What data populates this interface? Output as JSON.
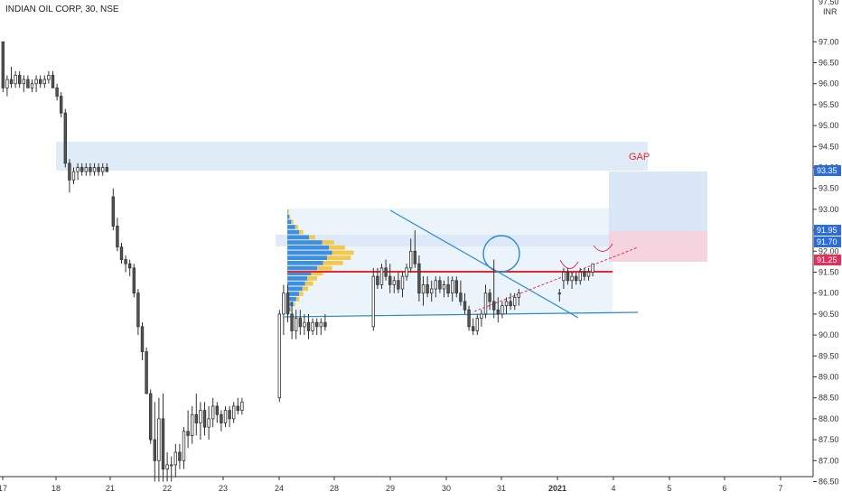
{
  "symbol_title": "INDIAN OIL CORP, 30, NSE",
  "currency": "INR",
  "gap_label": "GAP",
  "colors": {
    "up": "#ffffff",
    "down": "#555555",
    "wick": "#333333",
    "zone": "#dbe7f7",
    "zone_light": "#eaf3fb",
    "red_line": "#e8282b",
    "blue_line": "#2b8ccd",
    "vp_up": "#3f8fe0",
    "vp_down": "#f2c94c",
    "pink_zone": "#f4cfdc",
    "target_zone": "#d5e4f6",
    "gap_text": "#e8282b",
    "badge_blue": "#2b6cd9",
    "badge_red": "#e0305c"
  },
  "chart_data": {
    "type": "candlestick",
    "title": "INDIAN OIL CORP, 30, NSE",
    "ylabel": "INR",
    "ylim": [
      86.4,
      97.0
    ],
    "y_ticks": [
      "97.00",
      "96.50",
      "96.00",
      "95.50",
      "95.00",
      "94.50",
      "94.00",
      "93.50",
      "93.00",
      "92.50",
      "92.00",
      "91.50",
      "91.00",
      "90.50",
      "90.00",
      "89.50",
      "89.00",
      "88.50",
      "88.00",
      "87.50",
      "87.00",
      "86.50"
    ],
    "y_tick_values": [
      97.0,
      96.5,
      96.0,
      95.5,
      95.0,
      94.5,
      94.0,
      93.5,
      93.0,
      92.5,
      92.0,
      91.5,
      91.0,
      90.5,
      90.0,
      89.5,
      89.0,
      88.5,
      88.0,
      87.5,
      87.0,
      86.5
    ],
    "top_partial_tick": "97.50",
    "x_labels": [
      "17",
      "18",
      "21",
      "22",
      "23",
      "24",
      "28",
      "29",
      "30",
      "31",
      "2021",
      "4",
      "5",
      "6",
      "7"
    ],
    "price_badges": [
      {
        "value": "93.35",
        "color_key": "badge_blue"
      },
      {
        "value": "91.95",
        "color_key": "badge_blue"
      },
      {
        "value": "91.70",
        "color_key": "badge_blue"
      },
      {
        "value": "91.25",
        "color_key": "badge_red"
      }
    ],
    "candles": [
      [
        97.0,
        97.0,
        95.8,
        95.9
      ],
      [
        95.9,
        96.2,
        95.7,
        96.1
      ],
      [
        96.1,
        96.4,
        95.9,
        96.0
      ],
      [
        96.0,
        96.3,
        95.9,
        96.2
      ],
      [
        96.2,
        96.3,
        95.9,
        96.0
      ],
      [
        96.0,
        96.2,
        95.8,
        96.1
      ],
      [
        96.1,
        96.2,
        95.9,
        95.9
      ],
      [
        95.9,
        96.1,
        95.8,
        96.0
      ],
      [
        96.0,
        96.2,
        95.8,
        96.1
      ],
      [
        96.1,
        96.2,
        95.9,
        96.0
      ],
      [
        96.0,
        96.2,
        95.9,
        96.1
      ],
      [
        96.1,
        96.3,
        96.0,
        96.2
      ],
      [
        96.2,
        96.3,
        95.9,
        95.9
      ],
      [
        95.9,
        96.0,
        95.6,
        95.7
      ],
      [
        95.7,
        95.8,
        95.2,
        95.3
      ],
      [
        95.3,
        95.4,
        94.0,
        94.1
      ],
      [
        94.1,
        94.2,
        93.4,
        93.7
      ],
      [
        93.7,
        94.0,
        93.6,
        93.9
      ],
      [
        93.9,
        94.1,
        93.7,
        94.0
      ],
      [
        94.0,
        94.1,
        93.8,
        93.9
      ],
      [
        93.9,
        94.1,
        93.8,
        94.0
      ],
      [
        94.0,
        94.1,
        93.8,
        93.9
      ],
      [
        93.9,
        94.1,
        93.8,
        94.0
      ],
      [
        94.0,
        94.1,
        93.8,
        93.9
      ],
      [
        93.9,
        94.1,
        93.8,
        94.0
      ],
      [
        94.0,
        94.1,
        93.9,
        93.9
      ],
      [
        93.3,
        93.5,
        92.5,
        92.6
      ],
      [
        92.6,
        92.8,
        92.0,
        92.1
      ],
      [
        92.1,
        92.2,
        91.7,
        91.8
      ],
      [
        91.8,
        91.9,
        91.5,
        91.7
      ],
      [
        91.7,
        91.8,
        91.4,
        91.6
      ],
      [
        91.6,
        91.7,
        90.9,
        91.0
      ],
      [
        91.0,
        91.1,
        90.0,
        90.2
      ],
      [
        90.2,
        90.3,
        89.4,
        89.6
      ],
      [
        89.6,
        89.7,
        88.6,
        88.6
      ],
      [
        88.6,
        88.7,
        87.4,
        87.5
      ],
      [
        87.5,
        88.4,
        86.5,
        87.0
      ],
      [
        87.0,
        88.5,
        86.5,
        88.0
      ],
      [
        88.0,
        88.6,
        86.5,
        86.8
      ],
      [
        86.8,
        87.2,
        86.5,
        86.9
      ],
      [
        86.9,
        87.1,
        86.5,
        86.9
      ],
      [
        86.9,
        87.4,
        86.6,
        87.2
      ],
      [
        87.2,
        87.4,
        86.8,
        87.0
      ],
      [
        87.0,
        87.8,
        86.8,
        87.7
      ],
      [
        87.7,
        88.2,
        87.3,
        87.6
      ],
      [
        87.6,
        88.3,
        87.4,
        88.1
      ],
      [
        88.1,
        88.6,
        87.6,
        87.9
      ],
      [
        87.9,
        88.4,
        87.5,
        88.2
      ],
      [
        88.2,
        88.4,
        87.6,
        87.8
      ],
      [
        87.8,
        88.3,
        87.5,
        88.0
      ],
      [
        88.0,
        88.5,
        87.8,
        88.3
      ],
      [
        88.3,
        88.4,
        87.9,
        88.1
      ],
      [
        88.1,
        88.2,
        87.7,
        87.9
      ],
      [
        87.9,
        88.3,
        87.8,
        88.2
      ],
      [
        88.2,
        88.3,
        87.8,
        88.0
      ],
      [
        88.0,
        88.4,
        87.9,
        88.3
      ],
      [
        88.3,
        88.5,
        88.1,
        88.2
      ],
      [
        88.2,
        88.5,
        88.1,
        88.4
      ],
      [
        88.5,
        90.6,
        88.4,
        90.5
      ],
      [
        90.5,
        91.2,
        90.0,
        91.0
      ],
      [
        91.0,
        91.2,
        90.3,
        90.5
      ],
      [
        90.5,
        90.8,
        89.9,
        90.1
      ],
      [
        90.1,
        90.6,
        89.9,
        90.4
      ],
      [
        90.4,
        90.6,
        90.0,
        90.2
      ],
      [
        90.2,
        90.5,
        90.0,
        90.3
      ],
      [
        90.3,
        90.5,
        89.9,
        90.1
      ],
      [
        90.1,
        90.4,
        90.0,
        90.3
      ],
      [
        90.3,
        90.4,
        90.0,
        90.2
      ],
      [
        90.2,
        90.4,
        90.0,
        90.3
      ],
      [
        90.3,
        90.5,
        90.1,
        90.2
      ],
      [
        90.2,
        91.6,
        90.1,
        91.4
      ],
      [
        91.4,
        91.6,
        91.1,
        91.2
      ],
      [
        91.2,
        91.7,
        91.1,
        91.6
      ],
      [
        91.6,
        91.8,
        91.3,
        91.4
      ],
      [
        91.4,
        91.7,
        91.0,
        91.2
      ],
      [
        91.2,
        91.4,
        91.0,
        91.3
      ],
      [
        91.3,
        91.5,
        91.0,
        91.1
      ],
      [
        91.1,
        91.5,
        90.9,
        91.4
      ],
      [
        91.4,
        91.7,
        91.3,
        91.6
      ],
      [
        91.6,
        92.3,
        91.5,
        92.0
      ],
      [
        92.0,
        92.5,
        91.6,
        91.7
      ],
      [
        91.7,
        91.9,
        90.8,
        91.0
      ],
      [
        91.0,
        91.4,
        90.7,
        91.2
      ],
      [
        91.2,
        91.4,
        90.9,
        91.0
      ],
      [
        91.0,
        91.3,
        90.8,
        91.1
      ],
      [
        91.1,
        91.4,
        90.9,
        91.3
      ],
      [
        91.3,
        91.4,
        91.0,
        91.1
      ],
      [
        91.1,
        91.3,
        90.9,
        91.2
      ],
      [
        91.2,
        91.4,
        90.9,
        91.0
      ],
      [
        91.0,
        91.4,
        90.8,
        91.3
      ],
      [
        91.3,
        91.4,
        90.9,
        91.0
      ],
      [
        91.0,
        91.3,
        90.7,
        90.8
      ],
      [
        90.8,
        91.0,
        90.5,
        90.6
      ],
      [
        90.6,
        90.7,
        90.1,
        90.2
      ],
      [
        90.2,
        90.4,
        90.0,
        90.1
      ],
      [
        90.1,
        90.5,
        90.0,
        90.4
      ],
      [
        90.4,
        90.6,
        90.2,
        90.5
      ],
      [
        90.5,
        91.2,
        90.4,
        91.0
      ],
      [
        91.0,
        91.1,
        90.6,
        90.8
      ],
      [
        90.8,
        91.8,
        90.4,
        90.6
      ],
      [
        90.6,
        90.9,
        90.3,
        90.5
      ],
      [
        90.5,
        90.8,
        90.4,
        90.7
      ],
      [
        90.7,
        90.9,
        90.5,
        90.8
      ],
      [
        90.8,
        91.0,
        90.6,
        90.7
      ],
      [
        90.7,
        91.0,
        90.6,
        90.9
      ],
      [
        90.9,
        91.1,
        90.7,
        91.0
      ],
      [
        91.0,
        91.1,
        90.8,
        91.0
      ],
      [
        91.3,
        91.6,
        91.1,
        91.5
      ],
      [
        91.5,
        91.6,
        91.2,
        91.3
      ],
      [
        91.3,
        91.5,
        91.1,
        91.4
      ],
      [
        91.4,
        91.5,
        91.2,
        91.3
      ],
      [
        91.3,
        91.6,
        91.2,
        91.5
      ],
      [
        91.5,
        91.6,
        91.3,
        91.4
      ],
      [
        91.4,
        91.6,
        91.3,
        91.5
      ],
      [
        91.5,
        91.7,
        91.4,
        91.7
      ]
    ]
  }
}
